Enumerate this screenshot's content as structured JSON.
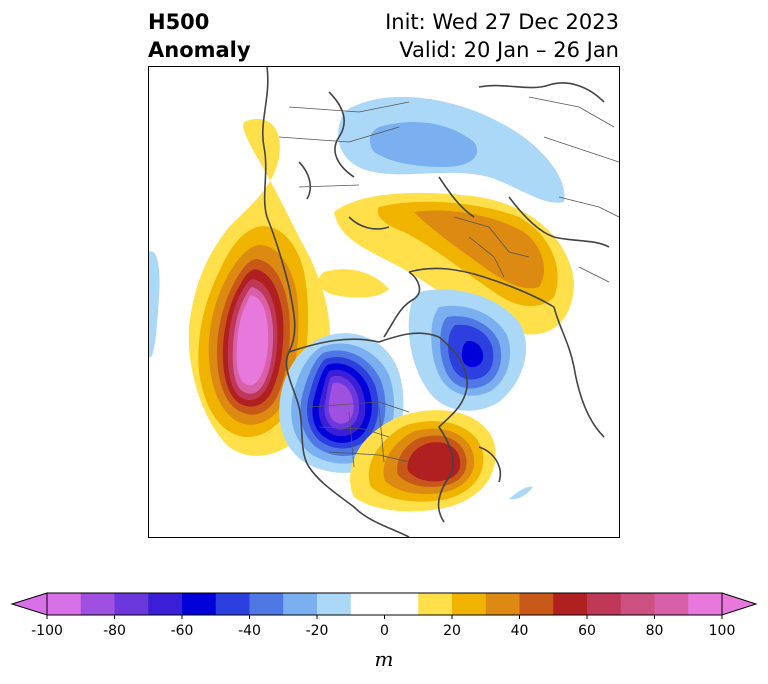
{
  "title": {
    "left_line1": "H500",
    "left_line2": "Anomaly",
    "right_line1": "Init: Wed 27 Dec 2023",
    "right_line2": "Valid: 20 Jan – 26 Jan"
  },
  "colorbar": {
    "unit": "m",
    "min": -100,
    "max": 100,
    "step": 10,
    "extend": "both",
    "tick_labels": [
      "-100",
      "-80",
      "-60",
      "-40",
      "-20",
      "0",
      "20",
      "40",
      "60",
      "80",
      "100"
    ],
    "tick_values": [
      -100,
      -80,
      -60,
      -40,
      -20,
      0,
      20,
      40,
      60,
      80,
      100
    ],
    "colors": [
      "#d870e8",
      "#a050e0",
      "#6a38dc",
      "#3a1ed8",
      "#0000d8",
      "#2c40e0",
      "#5078e4",
      "#7ab0f0",
      "#acd8f8",
      "#ffffff",
      "#ffe04a",
      "#f0b400",
      "#dc8a12",
      "#c85818",
      "#b02020",
      "#c03858",
      "#cc5080",
      "#d860a8",
      "#e878dc"
    ]
  }
}
